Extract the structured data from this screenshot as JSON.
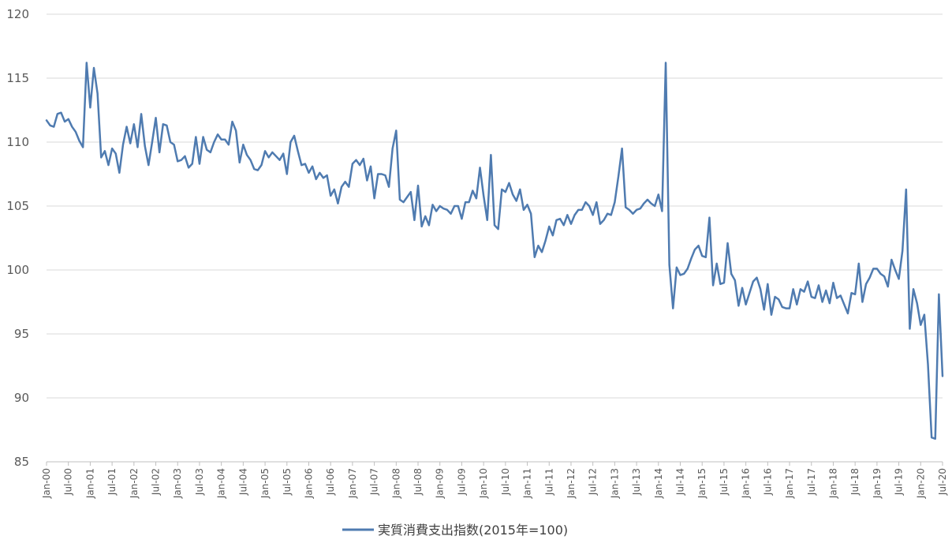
{
  "chart_data": {
    "type": "line",
    "title": "",
    "xlabel": "",
    "ylabel": "",
    "ylim": [
      85,
      120
    ],
    "yticks": [
      85,
      90,
      95,
      100,
      105,
      110,
      115,
      120
    ],
    "grid": true,
    "legend_position": "bottom",
    "x_start": "2000-01",
    "x_end": "2020-07",
    "xtick_labels": [
      "Jan-00",
      "Jul-00",
      "Jan-01",
      "Jul-01",
      "Jan-02",
      "Jul-02",
      "Jan-03",
      "Jul-03",
      "Jan-04",
      "Jul-04",
      "Jan-05",
      "Jul-05",
      "Jan-06",
      "Jul-06",
      "Jan-07",
      "Jul-07",
      "Jan-08",
      "Jul-08",
      "Jan-09",
      "Jul-09",
      "Jan-10",
      "Jul-10",
      "Jan-11",
      "Jul-11",
      "Jan-12",
      "Jul-12",
      "Jan-13",
      "Jul-13",
      "Jan-14",
      "Jul-14",
      "Jan-15",
      "Jul-15",
      "Jan-16",
      "Jul-16",
      "Jan-17",
      "Jul-17",
      "Jan-18",
      "Jul-18",
      "Jan-19",
      "Jul-19",
      "Jan-20",
      "Jul-20"
    ],
    "series": [
      {
        "name": "実質消費支出指数(2015年=100)",
        "color": "#4f7bb0",
        "values": [
          111.7,
          111.3,
          111.2,
          112.2,
          112.3,
          111.6,
          111.8,
          111.2,
          110.8,
          110.1,
          109.6,
          116.2,
          112.7,
          115.8,
          113.8,
          108.8,
          109.3,
          108.2,
          109.5,
          109.1,
          107.6,
          109.8,
          111.2,
          109.9,
          111.4,
          109.6,
          112.2,
          109.7,
          108.2,
          110.0,
          111.9,
          109.2,
          111.4,
          111.3,
          110.0,
          109.8,
          108.5,
          108.6,
          108.9,
          108.0,
          108.3,
          110.4,
          108.3,
          110.4,
          109.4,
          109.2,
          110.0,
          110.6,
          110.2,
          110.2,
          109.8,
          111.6,
          110.9,
          108.4,
          109.8,
          109.0,
          108.6,
          107.9,
          107.8,
          108.2,
          109.3,
          108.8,
          109.2,
          108.9,
          108.6,
          109.1,
          107.5,
          110.0,
          110.5,
          109.3,
          108.2,
          108.3,
          107.6,
          108.1,
          107.1,
          107.6,
          107.2,
          107.4,
          105.8,
          106.3,
          105.2,
          106.5,
          106.9,
          106.5,
          108.3,
          108.6,
          108.2,
          108.7,
          107.0,
          108.1,
          105.6,
          107.5,
          107.5,
          107.4,
          106.5,
          109.5,
          110.9,
          105.5,
          105.3,
          105.7,
          106.1,
          103.9,
          106.6,
          103.4,
          104.2,
          103.5,
          105.1,
          104.6,
          105.0,
          104.8,
          104.7,
          104.4,
          105.0,
          105.0,
          104.0,
          105.3,
          105.3,
          106.2,
          105.6,
          108.0,
          105.8,
          103.9,
          109.0,
          103.5,
          103.2,
          106.3,
          106.1,
          106.8,
          105.9,
          105.4,
          106.3,
          104.7,
          105.1,
          104.4,
          101.0,
          101.9,
          101.4,
          102.3,
          103.4,
          102.7,
          103.9,
          104.0,
          103.5,
          104.3,
          103.6,
          104.3,
          104.7,
          104.7,
          105.3,
          105.0,
          104.3,
          105.3,
          103.6,
          103.9,
          104.4,
          104.3,
          105.3,
          107.3,
          109.5,
          104.9,
          104.7,
          104.4,
          104.7,
          104.8,
          105.2,
          105.5,
          105.2,
          105.0,
          105.9,
          104.6,
          116.2,
          100.4,
          97.0,
          100.2,
          99.6,
          99.7,
          100.1,
          100.9,
          101.6,
          101.9,
          101.1,
          101.0,
          104.1,
          98.8,
          100.5,
          98.9,
          99.0,
          102.1,
          99.7,
          99.2,
          97.2,
          98.6,
          97.3,
          98.2,
          99.1,
          99.4,
          98.5,
          96.9,
          98.9,
          96.5,
          97.9,
          97.7,
          97.1,
          97.0,
          97.0,
          98.5,
          97.3,
          98.5,
          98.3,
          99.1,
          97.9,
          97.8,
          98.8,
          97.5,
          98.4,
          97.4,
          99.0,
          97.8,
          98.0,
          97.3,
          96.6,
          98.2,
          98.1,
          100.5,
          97.5,
          98.9,
          99.4,
          100.1,
          100.1,
          99.7,
          99.5,
          98.7,
          100.8,
          100.0,
          99.3,
          101.5,
          106.3,
          95.4,
          98.5,
          97.4,
          95.7,
          96.5,
          92.6,
          86.9,
          86.8,
          98.1,
          91.7
        ]
      }
    ]
  }
}
